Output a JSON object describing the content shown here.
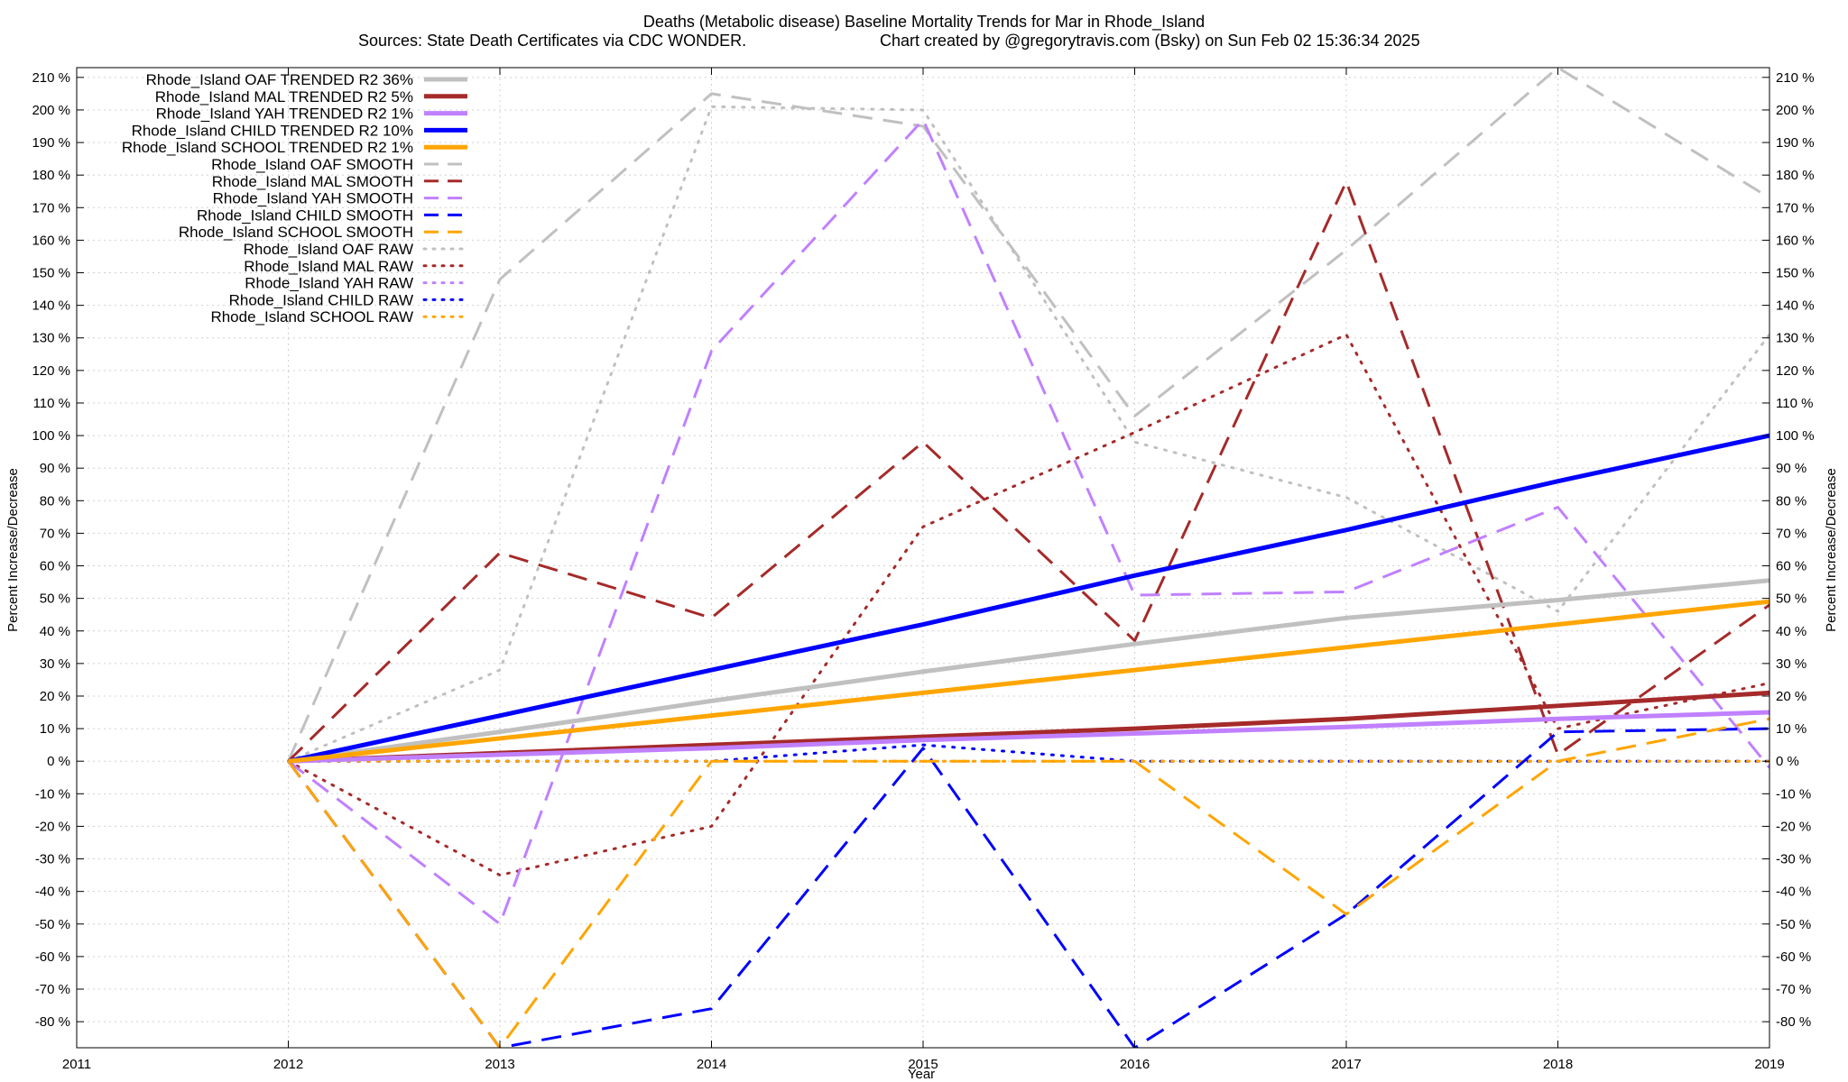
{
  "chart_data": {
    "type": "line",
    "title": "Deaths (Metabolic disease)  Baseline Mortality Trends for Mar in Rhode_Island",
    "subtitle_left": "Sources: State Death Certificates via CDC WONDER.",
    "subtitle_right": "Chart created by @gregorytravis.com (Bsky) on Sun Feb 02 15:36:34 2025",
    "xlabel": "Year",
    "ylabel_left": "Percent Increase/Decrease",
    "ylabel_right": "Percent Increase/Decrease",
    "xlim": [
      2011,
      2019
    ],
    "ylim": [
      -88,
      213
    ],
    "x_ticks": [
      "2011",
      "2012",
      "2013",
      "2014",
      "2015",
      "2016",
      "2017",
      "2018",
      "2019"
    ],
    "y_ticks": [
      "-80 %",
      "-70 %",
      "-60 %",
      "-50 %",
      "-40 %",
      "-30 %",
      "-20 %",
      "-10 %",
      "0 %",
      "10 %",
      "20 %",
      "30 %",
      "40 %",
      "50 %",
      "60 %",
      "70 %",
      "80 %",
      "90 %",
      "100 %",
      "110 %",
      "120 %",
      "130 %",
      "140 %",
      "150 %",
      "160 %",
      "170 %",
      "180 %",
      "190 %",
      "200 %",
      "210 %"
    ],
    "y_tick_values": [
      -80,
      -70,
      -60,
      -50,
      -40,
      -30,
      -20,
      -10,
      0,
      10,
      20,
      30,
      40,
      50,
      60,
      70,
      80,
      90,
      100,
      110,
      120,
      130,
      140,
      150,
      160,
      170,
      180,
      190,
      200,
      210
    ],
    "grid": true,
    "legend_position": "top-left",
    "x": [
      2012,
      2013,
      2014,
      2015,
      2016,
      2017,
      2018,
      2019
    ],
    "series": [
      {
        "name": "Rhode_Island OAF TRENDED R2  36%",
        "color": "#c0c0c0",
        "style": "solid",
        "width": 5,
        "values": [
          0,
          9,
          18.5,
          27.5,
          36,
          44,
          49.5,
          55.5
        ]
      },
      {
        "name": "Rhode_Island MAL TRENDED R2   5%",
        "color": "#a52a2a",
        "style": "solid",
        "width": 5,
        "values": [
          0,
          2.5,
          5,
          7.5,
          10,
          13,
          17,
          21
        ]
      },
      {
        "name": "Rhode_Island YAH TRENDED R2   1%",
        "color": "#c080ff",
        "style": "solid",
        "width": 5,
        "values": [
          0,
          2,
          4,
          6.5,
          8.5,
          10.5,
          13,
          15
        ]
      },
      {
        "name": "Rhode_Island CHILD TRENDED R2  10%",
        "color": "#0000ff",
        "style": "solid",
        "width": 5,
        "values": [
          0,
          14,
          28,
          42,
          57,
          71,
          86,
          100
        ]
      },
      {
        "name": "Rhode_Island SCHOOL TRENDED R2   1%",
        "color": "#ffa500",
        "style": "solid",
        "width": 5,
        "values": [
          0,
          7,
          14,
          21,
          28,
          35,
          42,
          49
        ]
      },
      {
        "name": "Rhode_Island OAF SMOOTH",
        "color": "#c0c0c0",
        "style": "dashed",
        "width": 3,
        "values": [
          0,
          148,
          205,
          195,
          106,
          157,
          213,
          173
        ]
      },
      {
        "name": "Rhode_Island MAL SMOOTH",
        "color": "#a52a2a",
        "style": "dashed",
        "width": 3,
        "values": [
          0,
          64,
          44,
          98,
          37,
          178,
          2,
          48
        ]
      },
      {
        "name": "Rhode_Island YAH SMOOTH",
        "color": "#c080ff",
        "style": "dashed",
        "width": 3,
        "values": [
          0,
          -50,
          126,
          197,
          51,
          52,
          78,
          -2
        ]
      },
      {
        "name": "Rhode_Island CHILD SMOOTH",
        "color": "#0000ff",
        "style": "dashed",
        "width": 3,
        "values": [
          0,
          -88,
          -76,
          4,
          -88,
          -47,
          9,
          10
        ]
      },
      {
        "name": "Rhode_Island SCHOOL SMOOTH",
        "color": "#ffa500",
        "style": "dashed",
        "width": 3,
        "values": [
          0,
          -88,
          0,
          0,
          0,
          -47,
          0,
          13
        ]
      },
      {
        "name": "Rhode_Island OAF RAW",
        "color": "#c0c0c0",
        "style": "dotted",
        "width": 3,
        "values": [
          0,
          28,
          201,
          200,
          98,
          81,
          46,
          131
        ]
      },
      {
        "name": "Rhode_Island MAL RAW",
        "color": "#a52a2a",
        "style": "dotted",
        "width": 3,
        "values": [
          0,
          -35,
          -20,
          72,
          101,
          131,
          10,
          24
        ]
      },
      {
        "name": "Rhode_Island YAH RAW",
        "color": "#c080ff",
        "style": "dotted",
        "width": 3,
        "values": [
          0,
          0,
          0,
          0,
          0,
          0,
          0,
          0
        ]
      },
      {
        "name": "Rhode_Island CHILD RAW",
        "color": "#0000ff",
        "style": "dotted",
        "width": 3,
        "values": [
          0,
          0,
          0,
          5,
          0,
          0,
          0,
          0
        ]
      },
      {
        "name": "Rhode_Island SCHOOL RAW",
        "color": "#ffa500",
        "style": "dotted",
        "width": 3,
        "values": [
          0,
          0,
          0,
          0,
          0,
          0,
          0,
          0
        ]
      }
    ]
  }
}
